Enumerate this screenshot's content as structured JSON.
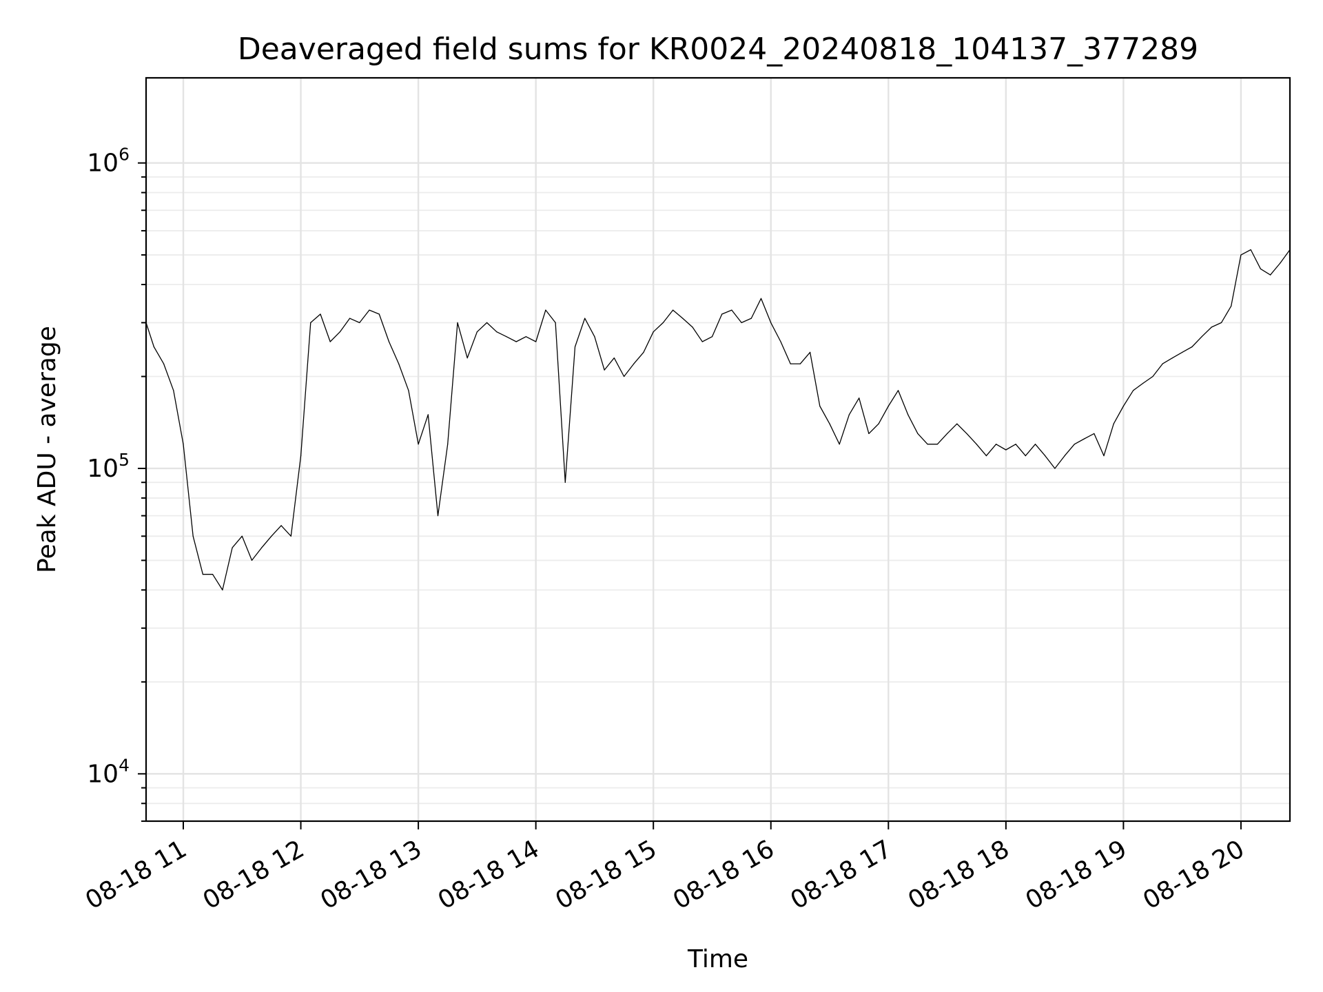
{
  "chart_data": {
    "type": "line",
    "title": "Deaveraged field sums for KR0024_20240818_104137_377289",
    "xlabel": "Time",
    "ylabel": "Peak ADU - average",
    "y_scale": "log",
    "ylim": [
      7000,
      1900000
    ],
    "xlim": [
      "2024-08-18 10:41",
      "2024-08-18 20:25"
    ],
    "grid": true,
    "legend": "none",
    "line_color": "#000000",
    "x_ticks": [
      {
        "x": "2024-08-18 11:00",
        "label": "08-18 11"
      },
      {
        "x": "2024-08-18 12:00",
        "label": "08-18 12"
      },
      {
        "x": "2024-08-18 13:00",
        "label": "08-18 13"
      },
      {
        "x": "2024-08-18 14:00",
        "label": "08-18 14"
      },
      {
        "x": "2024-08-18 15:00",
        "label": "08-18 15"
      },
      {
        "x": "2024-08-18 16:00",
        "label": "08-18 16"
      },
      {
        "x": "2024-08-18 17:00",
        "label": "08-18 17"
      },
      {
        "x": "2024-08-18 18:00",
        "label": "08-18 18"
      },
      {
        "x": "2024-08-18 19:00",
        "label": "08-18 19"
      },
      {
        "x": "2024-08-18 20:00",
        "label": "08-18 20"
      }
    ],
    "y_ticks": [
      {
        "value": 10000,
        "base": "10",
        "exp": "4"
      },
      {
        "value": 100000,
        "base": "10",
        "exp": "5"
      },
      {
        "value": 1000000,
        "base": "10",
        "exp": "6"
      }
    ],
    "series": [
      {
        "x": [
          "2024-08-18 10:41",
          "2024-08-18 10:45",
          "2024-08-18 10:50",
          "2024-08-18 10:55",
          "2024-08-18 11:00",
          "2024-08-18 11:05",
          "2024-08-18 11:10",
          "2024-08-18 11:15",
          "2024-08-18 11:20",
          "2024-08-18 11:25",
          "2024-08-18 11:30",
          "2024-08-18 11:35",
          "2024-08-18 11:40",
          "2024-08-18 11:45",
          "2024-08-18 11:50",
          "2024-08-18 11:55",
          "2024-08-18 12:00",
          "2024-08-18 12:05",
          "2024-08-18 12:10",
          "2024-08-18 12:15",
          "2024-08-18 12:20",
          "2024-08-18 12:25",
          "2024-08-18 12:30",
          "2024-08-18 12:35",
          "2024-08-18 12:40",
          "2024-08-18 12:45",
          "2024-08-18 12:50",
          "2024-08-18 12:55",
          "2024-08-18 13:00",
          "2024-08-18 13:05",
          "2024-08-18 13:10",
          "2024-08-18 13:15",
          "2024-08-18 13:20",
          "2024-08-18 13:25",
          "2024-08-18 13:30",
          "2024-08-18 13:35",
          "2024-08-18 13:40",
          "2024-08-18 13:45",
          "2024-08-18 13:50",
          "2024-08-18 13:55",
          "2024-08-18 14:00",
          "2024-08-18 14:05",
          "2024-08-18 14:10",
          "2024-08-18 14:15",
          "2024-08-18 14:20",
          "2024-08-18 14:25",
          "2024-08-18 14:30",
          "2024-08-18 14:35",
          "2024-08-18 14:40",
          "2024-08-18 14:45",
          "2024-08-18 14:50",
          "2024-08-18 14:55",
          "2024-08-18 15:00",
          "2024-08-18 15:05",
          "2024-08-18 15:10",
          "2024-08-18 15:15",
          "2024-08-18 15:20",
          "2024-08-18 15:25",
          "2024-08-18 15:30",
          "2024-08-18 15:35",
          "2024-08-18 15:40",
          "2024-08-18 15:45",
          "2024-08-18 15:50",
          "2024-08-18 15:55",
          "2024-08-18 16:00",
          "2024-08-18 16:05",
          "2024-08-18 16:10",
          "2024-08-18 16:15",
          "2024-08-18 16:20",
          "2024-08-18 16:25",
          "2024-08-18 16:30",
          "2024-08-18 16:35",
          "2024-08-18 16:40",
          "2024-08-18 16:45",
          "2024-08-18 16:50",
          "2024-08-18 16:55",
          "2024-08-18 17:00",
          "2024-08-18 17:05",
          "2024-08-18 17:10",
          "2024-08-18 17:15",
          "2024-08-18 17:20",
          "2024-08-18 17:25",
          "2024-08-18 17:30",
          "2024-08-18 17:35",
          "2024-08-18 17:40",
          "2024-08-18 17:45",
          "2024-08-18 17:50",
          "2024-08-18 17:55",
          "2024-08-18 18:00",
          "2024-08-18 18:05",
          "2024-08-18 18:10",
          "2024-08-18 18:15",
          "2024-08-18 18:20",
          "2024-08-18 18:25",
          "2024-08-18 18:30",
          "2024-08-18 18:35",
          "2024-08-18 18:40",
          "2024-08-18 18:45",
          "2024-08-18 18:50",
          "2024-08-18 18:55",
          "2024-08-18 19:00",
          "2024-08-18 19:05",
          "2024-08-18 19:10",
          "2024-08-18 19:15",
          "2024-08-18 19:20",
          "2024-08-18 19:25",
          "2024-08-18 19:30",
          "2024-08-18 19:35",
          "2024-08-18 19:40",
          "2024-08-18 19:45",
          "2024-08-18 19:50",
          "2024-08-18 19:55",
          "2024-08-18 20:00",
          "2024-08-18 20:05",
          "2024-08-18 20:10",
          "2024-08-18 20:15",
          "2024-08-18 20:20",
          "2024-08-18 20:25"
        ],
        "values": [
          300000,
          250000,
          220000,
          180000,
          120000,
          60000,
          45000,
          45000,
          40000,
          55000,
          60000,
          50000,
          55000,
          60000,
          65000,
          60000,
          110000,
          300000,
          320000,
          260000,
          280000,
          310000,
          300000,
          330000,
          320000,
          260000,
          220000,
          180000,
          120000,
          150000,
          70000,
          120000,
          300000,
          230000,
          280000,
          300000,
          280000,
          270000,
          260000,
          270000,
          260000,
          330000,
          300000,
          90000,
          250000,
          310000,
          270000,
          210000,
          230000,
          200000,
          220000,
          240000,
          280000,
          300000,
          330000,
          310000,
          290000,
          260000,
          270000,
          320000,
          330000,
          300000,
          310000,
          360000,
          300000,
          260000,
          220000,
          220000,
          240000,
          160000,
          140000,
          120000,
          150000,
          170000,
          130000,
          140000,
          160000,
          180000,
          150000,
          130000,
          120000,
          120000,
          130000,
          140000,
          130000,
          120000,
          110000,
          120000,
          115000,
          120000,
          110000,
          120000,
          110000,
          100000,
          110000,
          120000,
          125000,
          130000,
          110000,
          140000,
          160000,
          180000,
          190000,
          200000,
          220000,
          230000,
          240000,
          250000,
          270000,
          290000,
          300000,
          340000,
          500000,
          520000,
          450000,
          430000,
          470000,
          520000
        ]
      }
    ]
  }
}
